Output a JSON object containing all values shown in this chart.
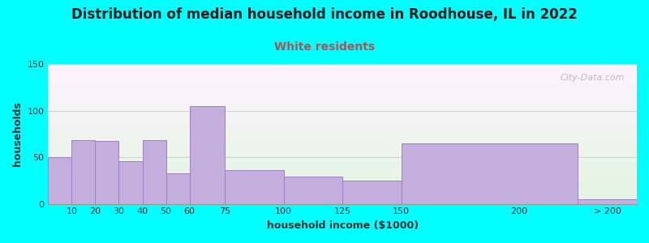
{
  "title": "Distribution of median household income in Roodhouse, IL in 2022",
  "subtitle": "White residents",
  "xlabel": "household income ($1000)",
  "ylabel": "households",
  "bg_color": "#00FFFF",
  "bar_color": "#C4AEDD",
  "bar_edge_color": "#A080C0",
  "values": [
    50,
    68,
    67,
    46,
    68,
    33,
    105,
    36,
    29,
    25,
    65,
    5
  ],
  "bar_lefts": [
    0,
    10,
    20,
    30,
    40,
    50,
    60,
    75,
    100,
    125,
    150,
    225
  ],
  "bar_widths": [
    10,
    10,
    10,
    10,
    10,
    10,
    15,
    25,
    25,
    25,
    75,
    25
  ],
  "xtick_pos": [
    10,
    20,
    30,
    40,
    50,
    60,
    75,
    100,
    125,
    150,
    200,
    237.5
  ],
  "xtick_labels": [
    "10",
    "20",
    "30",
    "40",
    "50",
    "60",
    "75",
    "100",
    "125",
    "150",
    "200",
    "> 200"
  ],
  "ylim": [
    0,
    150
  ],
  "yticks": [
    0,
    50,
    100,
    150
  ],
  "xlim_left": 0,
  "xlim_right": 250,
  "title_fontsize": 12,
  "subtitle_fontsize": 10,
  "axis_label_fontsize": 9,
  "tick_fontsize": 8,
  "watermark_text": "City-Data.com"
}
